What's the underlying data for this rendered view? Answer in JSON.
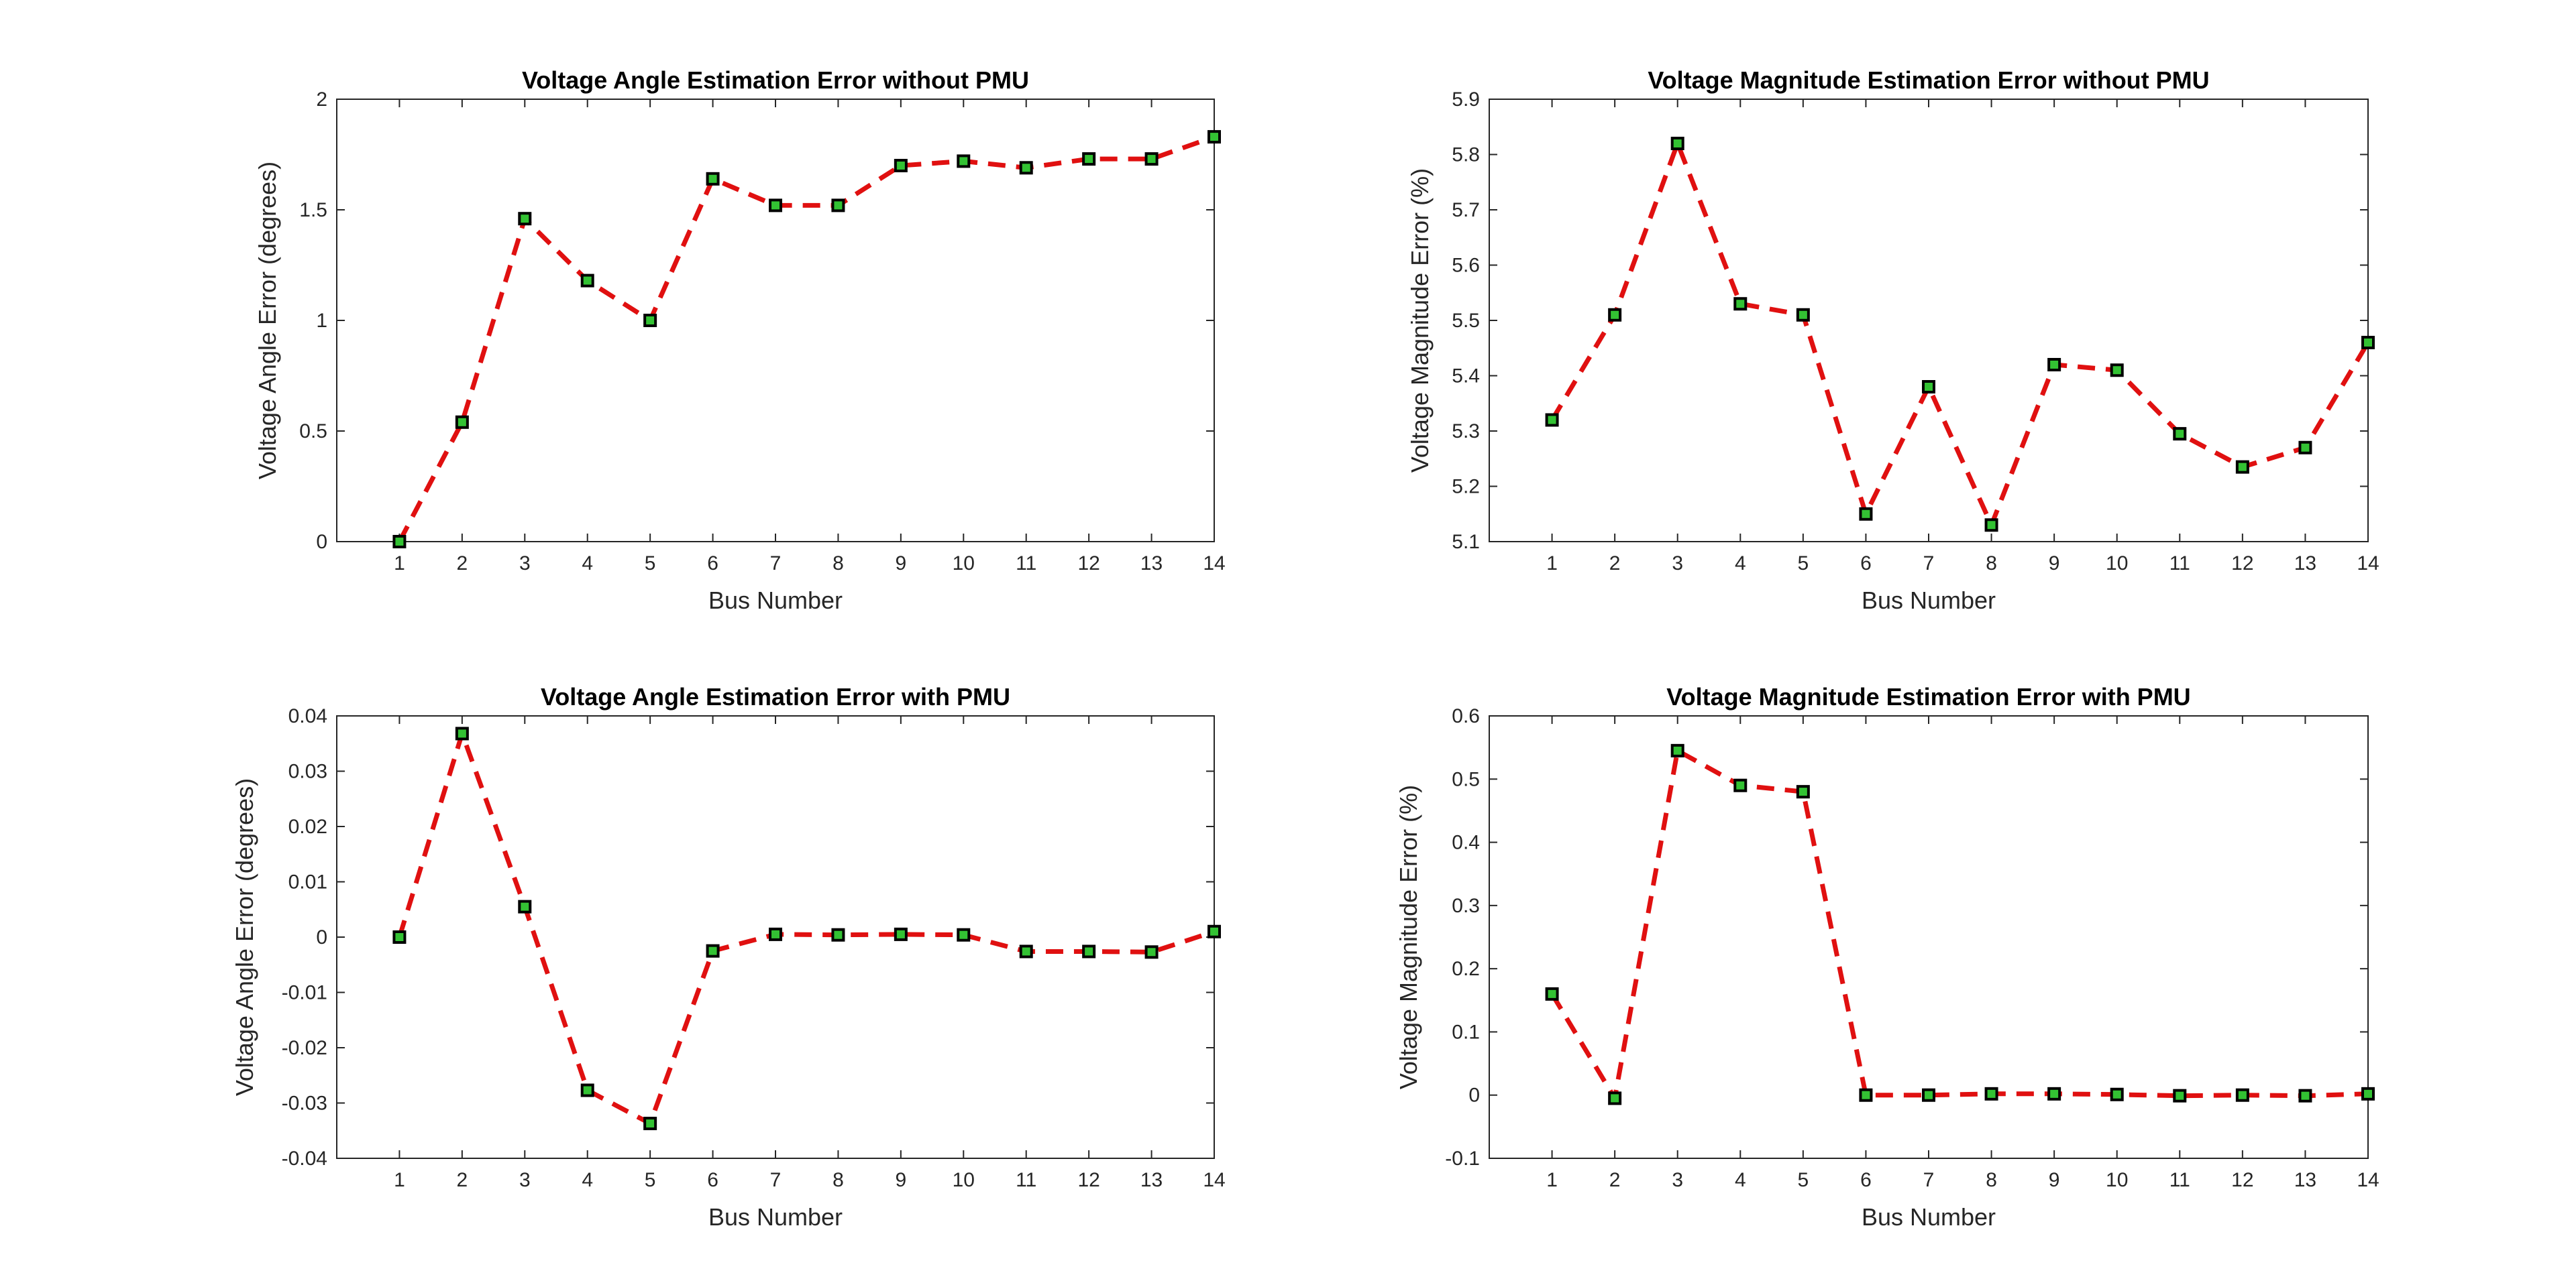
{
  "chart_data": [
    {
      "type": "line",
      "title": "Voltage Angle Estimation Error without PMU",
      "xlabel": "Bus Number",
      "ylabel": "Voltage Angle Error (degrees)",
      "x": [
        1,
        2,
        3,
        4,
        5,
        6,
        7,
        8,
        9,
        10,
        11,
        12,
        13,
        14
      ],
      "xlim": [
        0,
        14
      ],
      "ylim": [
        0,
        2
      ],
      "yticks": [
        0,
        0.5,
        1,
        1.5,
        2
      ],
      "ytick_labels": [
        "0",
        "0.5",
        "1",
        "1.5",
        "2"
      ],
      "series": [
        {
          "values": [
            0,
            0.54,
            1.46,
            1.18,
            1.0,
            1.64,
            1.52,
            1.52,
            1.7,
            1.72,
            1.69,
            1.73,
            1.73,
            1.83
          ]
        }
      ],
      "grid": false,
      "line_color": "#e01010",
      "line_style": "dashed",
      "marker": "square",
      "marker_fill": "#33c233",
      "marker_edge": "#000000"
    },
    {
      "type": "line",
      "title": "Voltage Magnitude Estimation Error without PMU",
      "xlabel": "Bus Number",
      "ylabel": "Voltage Magnitude Error (%)",
      "x": [
        1,
        2,
        3,
        4,
        5,
        6,
        7,
        8,
        9,
        10,
        11,
        12,
        13,
        14
      ],
      "xlim": [
        0,
        14
      ],
      "ylim": [
        5.1,
        5.9
      ],
      "yticks": [
        5.1,
        5.2,
        5.3,
        5.4,
        5.5,
        5.6,
        5.7,
        5.8,
        5.9
      ],
      "ytick_labels": [
        "5.1",
        "5.2",
        "5.3",
        "5.4",
        "5.5",
        "5.6",
        "5.7",
        "5.8",
        "5.9"
      ],
      "series": [
        {
          "values": [
            5.32,
            5.51,
            5.82,
            5.53,
            5.51,
            5.15,
            5.38,
            5.13,
            5.42,
            5.41,
            5.295,
            5.235,
            5.27,
            5.46
          ]
        }
      ],
      "grid": false,
      "line_color": "#e01010",
      "line_style": "dashed",
      "marker": "square",
      "marker_fill": "#33c233",
      "marker_edge": "#000000"
    },
    {
      "type": "line",
      "title": "Voltage Angle Estimation Error with PMU",
      "xlabel": "Bus Number",
      "ylabel": "Voltage Angle Error (degrees)",
      "x": [
        1,
        2,
        3,
        4,
        5,
        6,
        7,
        8,
        9,
        10,
        11,
        12,
        13,
        14
      ],
      "xlim": [
        0,
        14
      ],
      "ylim": [
        -0.04,
        0.04
      ],
      "yticks": [
        -0.04,
        -0.03,
        -0.02,
        -0.01,
        0,
        0.01,
        0.02,
        0.03,
        0.04
      ],
      "ytick_labels": [
        "-0.04",
        "-0.03",
        "-0.02",
        "-0.01",
        "0",
        "0.01",
        "0.02",
        "0.03",
        "0.04"
      ],
      "series": [
        {
          "values": [
            0,
            0.0368,
            0.0055,
            -0.0277,
            -0.0337,
            -0.0025,
            0.0005,
            0.0004,
            0.0005,
            0.0004,
            -0.0026,
            -0.0026,
            -0.0027,
            0.001
          ]
        }
      ],
      "grid": false,
      "line_color": "#e01010",
      "line_style": "dashed",
      "marker": "square",
      "marker_fill": "#33c233",
      "marker_edge": "#000000"
    },
    {
      "type": "line",
      "title": "Voltage Magnitude Estimation Error with PMU",
      "xlabel": "Bus Number",
      "ylabel": "Voltage Magnitude Error (%)",
      "x": [
        1,
        2,
        3,
        4,
        5,
        6,
        7,
        8,
        9,
        10,
        11,
        12,
        13,
        14
      ],
      "xlim": [
        0,
        14
      ],
      "ylim": [
        -0.1,
        0.6
      ],
      "yticks": [
        -0.1,
        0,
        0.1,
        0.2,
        0.3,
        0.4,
        0.5,
        0.6
      ],
      "ytick_labels": [
        "-0.1",
        "0",
        "0.1",
        "0.2",
        "0.3",
        "0.4",
        "0.5",
        "0.6"
      ],
      "series": [
        {
          "values": [
            0.16,
            -0.005,
            0.545,
            0.49,
            0.48,
            0.0,
            0.0,
            0.002,
            0.002,
            0.001,
            -0.001,
            0.0,
            -0.001,
            0.002
          ]
        }
      ],
      "grid": false,
      "line_color": "#e01010",
      "line_style": "dashed",
      "marker": "square",
      "marker_fill": "#33c233",
      "marker_edge": "#000000"
    }
  ]
}
